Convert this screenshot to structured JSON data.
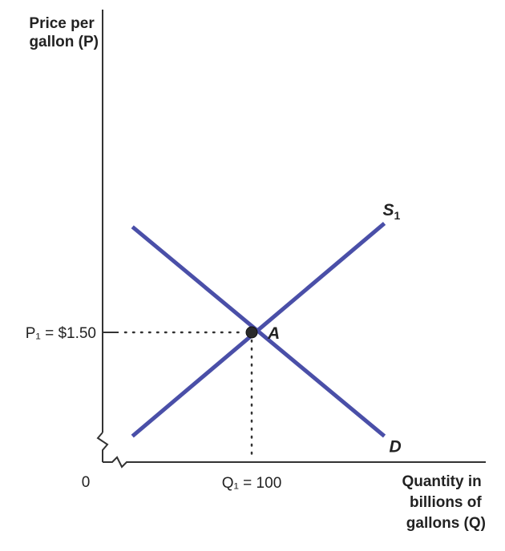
{
  "chart_data": {
    "type": "line",
    "ylabel_lines": [
      "Price per",
      "gallon (P)"
    ],
    "xlabel_lines": [
      "Quantity in",
      "billions of",
      "gallons (Q)"
    ],
    "origin_label": "0",
    "xlim": [
      0,
      200
    ],
    "ylim": [
      0,
      3.0
    ],
    "series": [
      {
        "name": "S",
        "name_sub": "1",
        "x": [
          20,
          189
        ],
        "y": [
          0.3,
          2.76
        ],
        "color": "#4a4fa8"
      },
      {
        "name": "D",
        "name_sub": "",
        "x": [
          20,
          189
        ],
        "y": [
          2.72,
          0.3
        ],
        "color": "#4a4fa8"
      }
    ],
    "equilibrium": {
      "label": "A",
      "x": 100,
      "y": 1.5,
      "price_label": "P₁ = $1.50",
      "quantity_label": "Q₁ = 100"
    }
  }
}
